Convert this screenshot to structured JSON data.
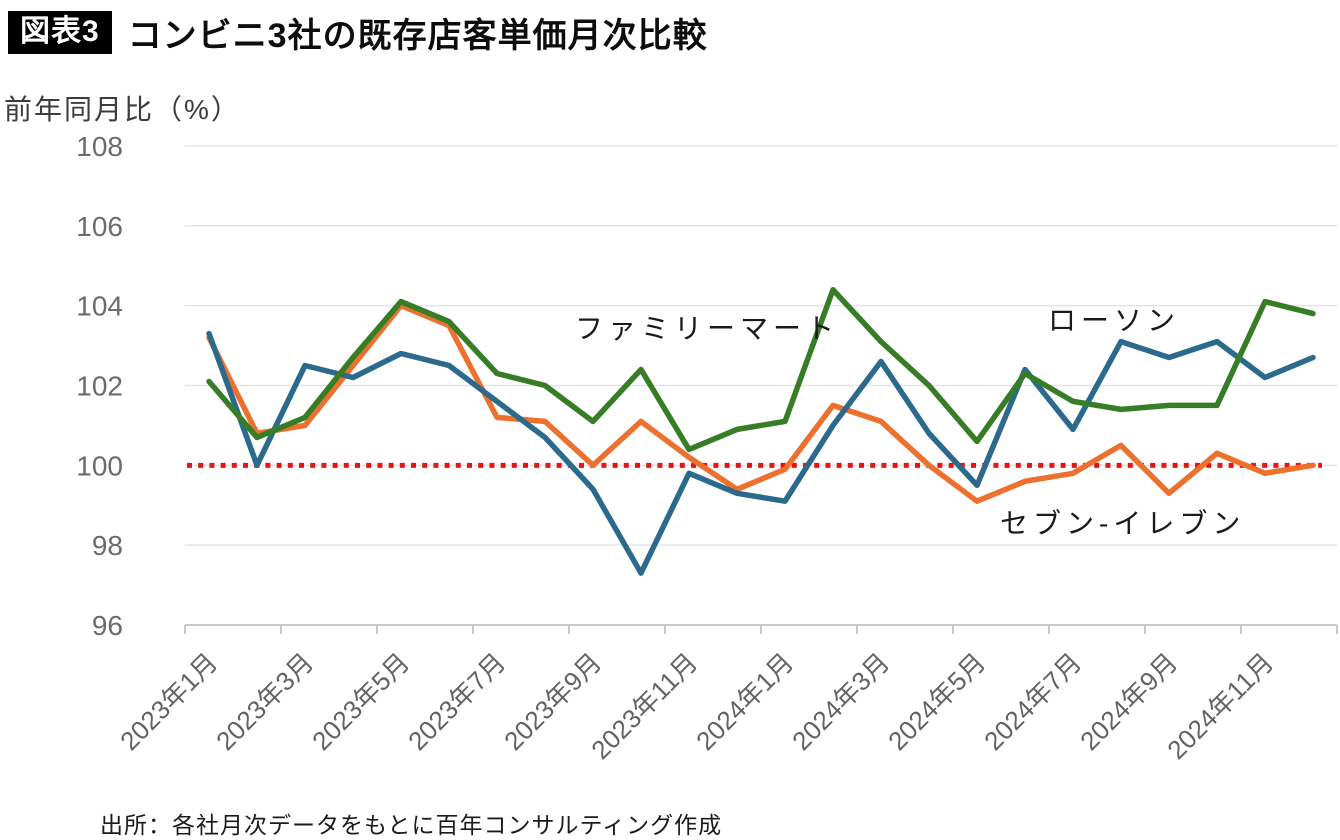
{
  "header": {
    "badge": "図表3",
    "title": "コンビニ3社の既存店客単価月次比較"
  },
  "y_axis_title": "前年同月比（%）",
  "source": "出所：各社月次データをもとに百年コンサルティング作成",
  "chart_data": {
    "type": "line",
    "title": "コンビニ3社の既存店客単価月次比較",
    "ylabel": "前年同月比（%）",
    "ylim": [
      96,
      108
    ],
    "y_ticks": [
      96,
      98,
      100,
      102,
      104,
      106,
      108
    ],
    "grid": "horizontal",
    "baseline": {
      "value": 100,
      "color": "#ed1111",
      "style": "dotted"
    },
    "categories": [
      "2023年1月",
      "2023年2月",
      "2023年3月",
      "2023年4月",
      "2023年5月",
      "2023年6月",
      "2023年7月",
      "2023年8月",
      "2023年9月",
      "2023年10月",
      "2023年11月",
      "2023年12月",
      "2024年1月",
      "2024年2月",
      "2024年3月",
      "2024年4月",
      "2024年5月",
      "2024年6月",
      "2024年7月",
      "2024年8月",
      "2024年9月",
      "2024年10月",
      "2024年11月",
      "2024年12月"
    ],
    "x_tick_indices": [
      0,
      2,
      4,
      6,
      8,
      10,
      12,
      14,
      16,
      18,
      20,
      22
    ],
    "x_tick_labels": [
      "2023年1月",
      "2023年3月",
      "2023年5月",
      "2023年7月",
      "2023年9月",
      "2023年11月",
      "2024年1月",
      "2024年3月",
      "2024年5月",
      "2024年7月",
      "2024年9月",
      "2024年11月"
    ],
    "series": [
      {
        "name": "セブン‐イレブン",
        "color": "#ec712f",
        "values": [
          103.2,
          100.8,
          101.0,
          102.5,
          104.0,
          103.5,
          101.2,
          101.1,
          100.0,
          101.1,
          100.2,
          99.4,
          99.9,
          101.5,
          101.1,
          100.0,
          99.1,
          99.6,
          99.8,
          100.5,
          99.3,
          100.3,
          99.8,
          100.0
        ]
      },
      {
        "name": "ローソン",
        "color": "#2b6a8c",
        "values": [
          103.3,
          100.0,
          102.5,
          102.2,
          102.8,
          102.5,
          101.6,
          100.7,
          99.4,
          97.3,
          99.8,
          99.3,
          99.1,
          101.0,
          102.6,
          100.8,
          99.5,
          102.4,
          100.9,
          103.1,
          102.7,
          103.1,
          102.2,
          102.7
        ]
      },
      {
        "name": "ファミリーマート",
        "color": "#377d26",
        "values": [
          102.1,
          100.7,
          101.2,
          102.7,
          104.1,
          103.6,
          102.3,
          102.0,
          101.1,
          102.4,
          100.4,
          100.9,
          101.1,
          104.4,
          103.1,
          102.0,
          100.6,
          102.3,
          101.6,
          101.4,
          101.5,
          101.5,
          104.1,
          103.8
        ]
      }
    ]
  }
}
